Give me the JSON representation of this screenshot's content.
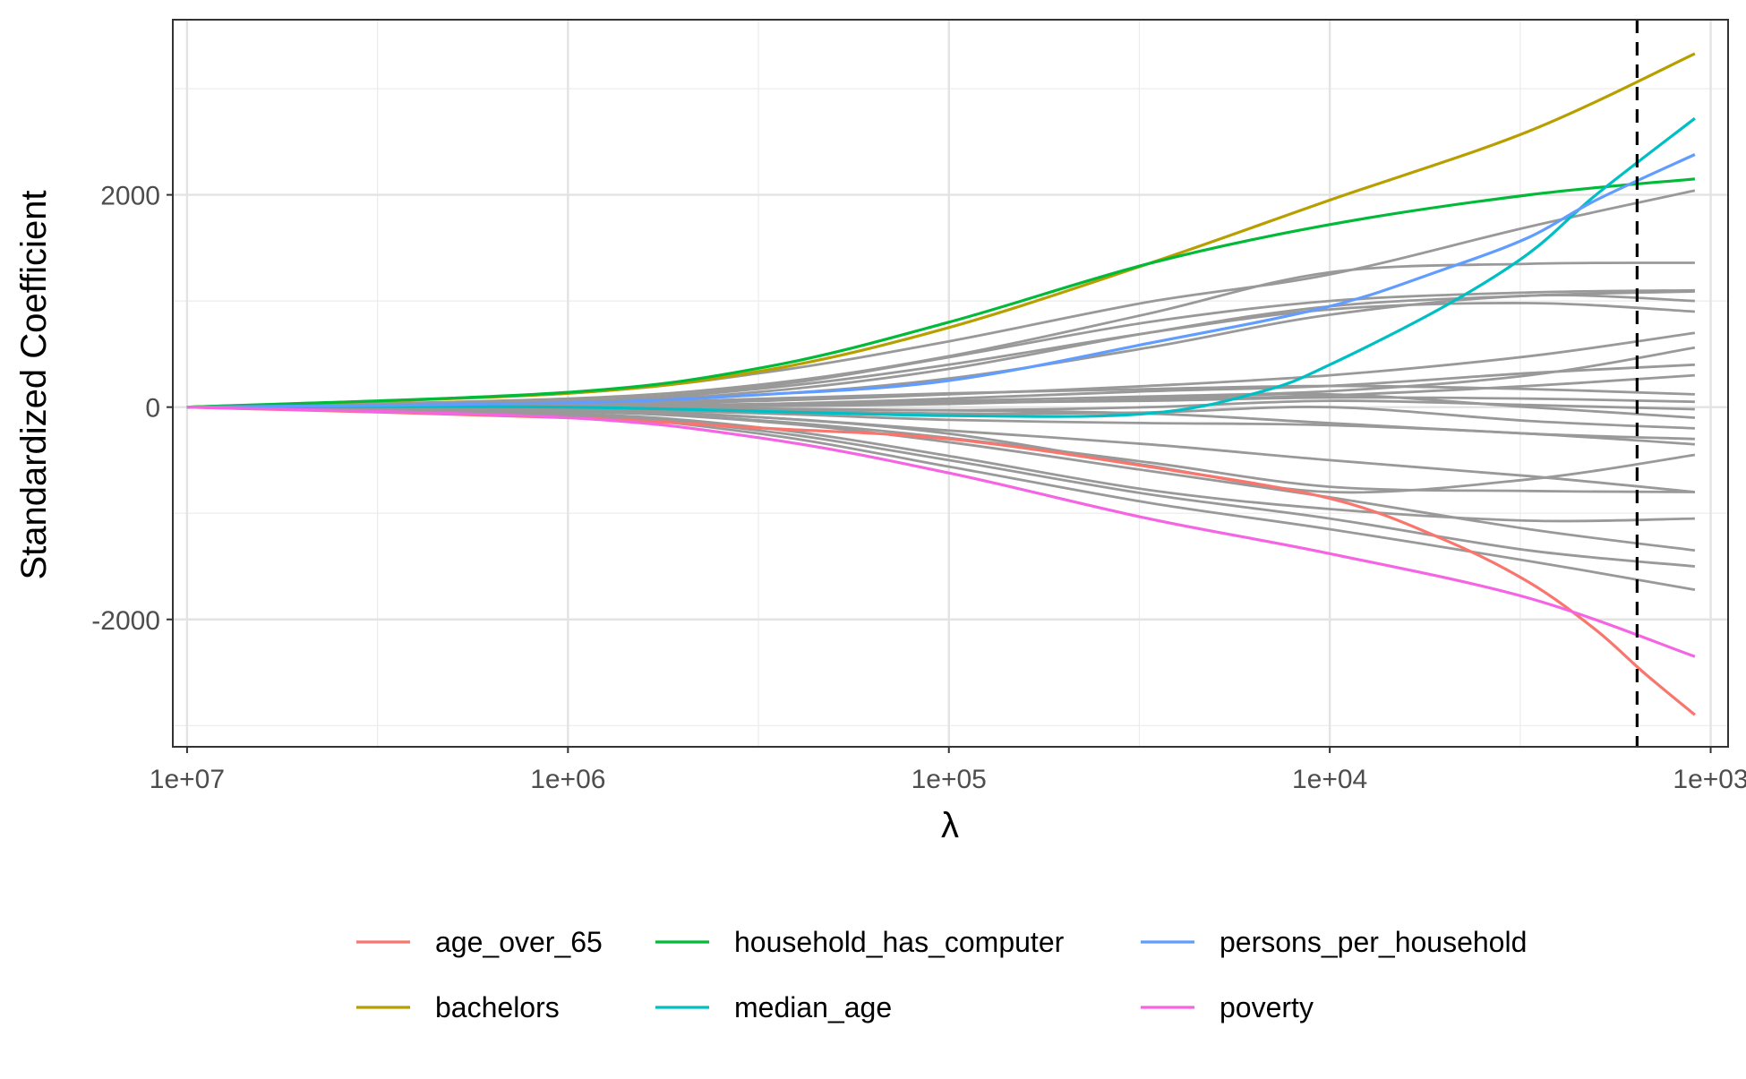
{
  "chart_data": {
    "type": "line",
    "title": "",
    "xlabel": "λ",
    "ylabel": "Standardized Coefficient",
    "x_scale": "log10, reversed",
    "xlim": [
      10900000,
      900
    ],
    "ylim": [
      -3200,
      3650
    ],
    "x_ticks": [
      10000000,
      1000000,
      100000,
      10000,
      1000
    ],
    "x_tick_labels": [
      "1e+07",
      "1e+06",
      "1e+05",
      "1e+04",
      "1e+03"
    ],
    "y_ticks": [
      -2000,
      0,
      2000
    ],
    "y_tick_labels": [
      "-2000",
      "0",
      "2000"
    ],
    "grid": true,
    "legend_position": "bottom",
    "vline": {
      "x": 1560,
      "style": "dashed",
      "color": "#000000"
    },
    "series": [
      {
        "name": "age_over_65",
        "color": "#F8766D",
        "highlighted": true,
        "x": [
          10000000,
          1000000,
          300000,
          100000,
          30000,
          10000,
          5000,
          3000,
          2000,
          1500,
          1100
        ],
        "y": [
          0,
          -100,
          -200,
          -300,
          -560,
          -860,
          -1250,
          -1650,
          -2100,
          -2500,
          -2900
        ]
      },
      {
        "name": "bachelors",
        "color": "#B79F00",
        "highlighted": true,
        "x": [
          10000000,
          1000000,
          300000,
          100000,
          30000,
          10000,
          3000,
          1100
        ],
        "y": [
          0,
          130,
          350,
          750,
          1350,
          1950,
          2600,
          3330
        ]
      },
      {
        "name": "household_has_computer",
        "color": "#00BA38",
        "highlighted": true,
        "x": [
          10000000,
          1000000,
          300000,
          100000,
          30000,
          10000,
          3000,
          1100
        ],
        "y": [
          0,
          140,
          380,
          800,
          1350,
          1720,
          2000,
          2150
        ]
      },
      {
        "name": "median_age",
        "color": "#00BFC4",
        "highlighted": true,
        "x": [
          10000000,
          1000000,
          100000,
          30000,
          15000,
          10000,
          5000,
          3000,
          2000,
          1100
        ],
        "y": [
          0,
          0,
          -80,
          -60,
          150,
          400,
          950,
          1450,
          2000,
          2720
        ]
      },
      {
        "name": "persons_per_household",
        "color": "#619CFF",
        "highlighted": true,
        "x": [
          10000000,
          1000000,
          300000,
          100000,
          30000,
          10000,
          5000,
          3000,
          2000,
          1100
        ],
        "y": [
          0,
          40,
          120,
          250,
          600,
          950,
          1300,
          1600,
          1950,
          2380
        ]
      },
      {
        "name": "poverty",
        "color": "#F564E3",
        "highlighted": true,
        "x": [
          10000000,
          1000000,
          300000,
          100000,
          30000,
          10000,
          3000,
          1100
        ],
        "y": [
          0,
          -100,
          -300,
          -620,
          -1050,
          -1380,
          -1800,
          -2350
        ]
      }
    ],
    "other_series": {
      "color": "#999999",
      "x": [
        10000000,
        1000000,
        300000,
        100000,
        30000,
        10000,
        3000,
        1100
      ],
      "y_values": [
        [
          0,
          130,
          330,
          620,
          990,
          1250,
          1700,
          2040
        ],
        [
          0,
          80,
          220,
          480,
          880,
          1270,
          1350,
          1360
        ],
        [
          0,
          60,
          200,
          470,
          800,
          1000,
          1080,
          1100
        ],
        [
          0,
          40,
          150,
          360,
          700,
          950,
          1050,
          1090
        ],
        [
          0,
          40,
          120,
          270,
          560,
          870,
          1050,
          1000
        ],
        [
          0,
          50,
          180,
          400,
          700,
          920,
          980,
          900
        ],
        [
          0,
          20,
          60,
          120,
          200,
          300,
          480,
          700
        ],
        [
          0,
          10,
          30,
          60,
          100,
          150,
          300,
          560
        ],
        [
          0,
          10,
          30,
          80,
          150,
          200,
          320,
          400
        ],
        [
          0,
          5,
          20,
          40,
          70,
          110,
          200,
          300
        ],
        [
          0,
          30,
          80,
          130,
          170,
          200,
          170,
          120
        ],
        [
          0,
          5,
          20,
          40,
          60,
          90,
          80,
          50
        ],
        [
          0,
          -5,
          -15,
          -30,
          0,
          60,
          20,
          -20
        ],
        [
          0,
          5,
          10,
          30,
          80,
          120,
          0,
          -100
        ],
        [
          0,
          -10,
          -30,
          -60,
          -50,
          0,
          -130,
          -200
        ],
        [
          0,
          -10,
          -20,
          -30,
          -60,
          -150,
          -250,
          -300
        ],
        [
          0,
          -20,
          -60,
          -120,
          -150,
          -170,
          -250,
          -350
        ],
        [
          0,
          -30,
          -100,
          -220,
          -350,
          -500,
          -650,
          -800
        ],
        [
          0,
          -40,
          -130,
          -290,
          -520,
          -750,
          -790,
          -800
        ],
        [
          0,
          -30,
          -100,
          -250,
          -550,
          -800,
          -680,
          -450
        ],
        [
          0,
          -40,
          -140,
          -330,
          -600,
          -850,
          -1150,
          -1350
        ],
        [
          0,
          -60,
          -200,
          -460,
          -780,
          -960,
          -1070,
          -1050
        ],
        [
          0,
          -70,
          -230,
          -500,
          -820,
          -1050,
          -1350,
          -1500
        ],
        [
          0,
          -80,
          -260,
          -560,
          -900,
          -1150,
          -1450,
          -1720
        ]
      ]
    }
  }
}
